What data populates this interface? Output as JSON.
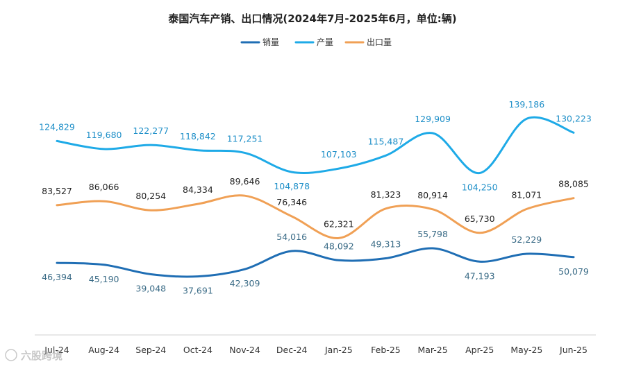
{
  "chart_data": {
    "type": "line",
    "title": "泰国汽车产销、出口情况(2024年7月-2025年6月，单位:辆)",
    "categories": [
      "Jul-24",
      "Aug-24",
      "Sep-24",
      "Oct-24",
      "Nov-24",
      "Dec-24",
      "Jan-25",
      "Feb-25",
      "Mar-25",
      "Apr-25",
      "May-25",
      "Jun-25"
    ],
    "ylim": [
      0,
      150000
    ],
    "grid": false,
    "legend_position": "top-center",
    "series": [
      {
        "name": "销量",
        "color": "#1f6eb4",
        "label_color": "#3a6b86",
        "values": [
          46394,
          45190,
          39048,
          37691,
          42309,
          54016,
          48092,
          49313,
          55798,
          47193,
          52229,
          50079
        ],
        "labels": [
          "46,394",
          "45,190",
          "39,048",
          "37,691",
          "42,309",
          "54,016",
          "48,092",
          "49,313",
          "55,798",
          "47,193",
          "52,229",
          "50,079"
        ]
      },
      {
        "name": "产量",
        "color": "#1eaae7",
        "label_color": "#1e8fc8",
        "values": [
          124829,
          119680,
          122277,
          118842,
          117251,
          104878,
          107103,
          115487,
          129909,
          104250,
          139186,
          130223
        ],
        "labels": [
          "124,829",
          "119,680",
          "122,277",
          "118,842",
          "117,251",
          "104,878",
          "107,103",
          "115,487",
          "129,909",
          "104,250",
          "139,186",
          "130,223"
        ]
      },
      {
        "name": "出口量",
        "color": "#f0a055",
        "label_color": "#222222",
        "values": [
          83527,
          86066,
          80254,
          84334,
          89646,
          76346,
          62321,
          81323,
          80914,
          65730,
          81071,
          88085
        ],
        "labels": [
          "83,527",
          "86,066",
          "80,254",
          "84,334",
          "89,646",
          "76,346",
          "62,321",
          "81,323",
          "80,914",
          "65,730",
          "81,071",
          "88,085"
        ]
      }
    ],
    "watermark": "六股跨境"
  }
}
